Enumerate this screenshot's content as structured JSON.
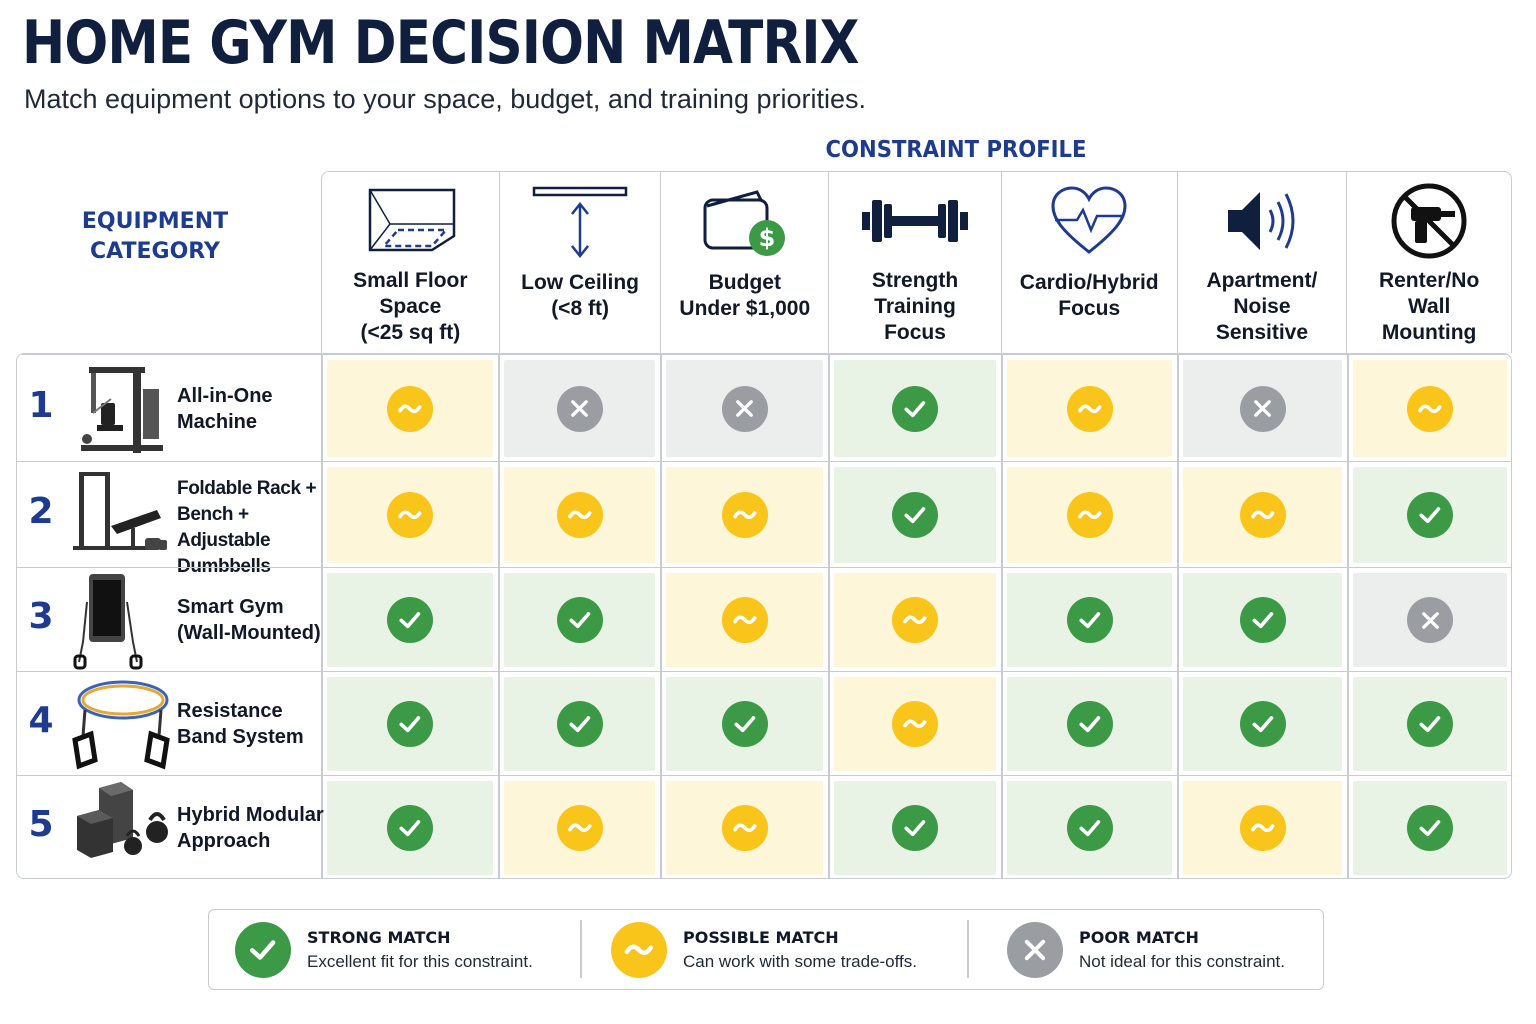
{
  "title": "HOME GYM DECISION MATRIX",
  "subtitle": "Match equipment options to your space, budget, and training priorities.",
  "constraint_profile_label": "CONSTRAINT PROFILE",
  "equipment_category_label": "EQUIPMENT\nCATEGORY",
  "colors": {
    "heading_navy": "#0f1f3d",
    "accent_blue": "#1d3c8f",
    "strong": "#3c9a46",
    "possible": "#f9c51a",
    "poor": "#9a9ea3",
    "strong_bg": "#e9f3e5",
    "possible_bg": "#fdf6d8",
    "poor_bg": "#eceded"
  },
  "constraints": [
    {
      "label": "Small Floor\nSpace\n(<25 sq ft)",
      "icon": "floor-space-icon"
    },
    {
      "label": "Low Ceiling\n(<8 ft)",
      "icon": "low-ceiling-icon"
    },
    {
      "label": "Budget\nUnder $1,000",
      "icon": "wallet-dollar-icon"
    },
    {
      "label": "Strength\nTraining\nFocus",
      "icon": "dumbbell-icon"
    },
    {
      "label": "Cardio/Hybrid\nFocus",
      "icon": "heart-pulse-icon"
    },
    {
      "label": "Apartment/\nNoise\nSensitive",
      "icon": "speaker-icon"
    },
    {
      "label": "Renter/No\nWall\nMounting",
      "icon": "no-drill-icon"
    }
  ],
  "equipment": [
    {
      "number": "1",
      "label": "All-in-One\nMachine",
      "icon": "home-gym-machine-icon",
      "ratings": [
        "possible",
        "poor",
        "poor",
        "strong",
        "possible",
        "poor",
        "possible"
      ]
    },
    {
      "number": "2",
      "label": "Foldable Rack +\nBench + Adjustable\nDumbbells",
      "icon": "rack-bench-icon",
      "ratings": [
        "possible",
        "possible",
        "possible",
        "strong",
        "possible",
        "possible",
        "strong"
      ]
    },
    {
      "number": "3",
      "label": "Smart Gym\n(Wall-Mounted)",
      "icon": "smart-gym-icon",
      "ratings": [
        "strong",
        "strong",
        "possible",
        "possible",
        "strong",
        "strong",
        "poor"
      ]
    },
    {
      "number": "4",
      "label": "Resistance\nBand System",
      "icon": "resistance-band-icon",
      "ratings": [
        "strong",
        "strong",
        "strong",
        "possible",
        "strong",
        "strong",
        "strong"
      ]
    },
    {
      "number": "5",
      "label": "Hybrid Modular\nApproach",
      "icon": "modular-blocks-icon",
      "ratings": [
        "strong",
        "possible",
        "possible",
        "strong",
        "strong",
        "possible",
        "strong"
      ]
    }
  ],
  "legend": [
    {
      "key": "strong",
      "title": "STRONG MATCH",
      "desc": "Excellent fit for this constraint."
    },
    {
      "key": "possible",
      "title": "POSSIBLE MATCH",
      "desc": "Can work with some trade-offs."
    },
    {
      "key": "poor",
      "title": "POOR MATCH",
      "desc": "Not ideal for this constraint."
    }
  ]
}
